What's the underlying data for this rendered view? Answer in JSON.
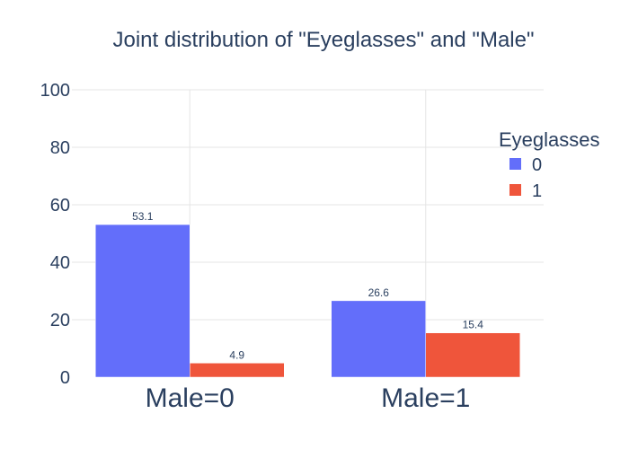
{
  "chart_data": {
    "type": "bar",
    "title": "Joint distribution of \"Eyeglasses\" and \"Male\"",
    "xlabel": "",
    "ylabel": "",
    "categories": [
      "Male=0",
      "Male=1"
    ],
    "series": [
      {
        "name": "0",
        "values": [
          53.1,
          26.6
        ],
        "color": "#636efa"
      },
      {
        "name": "1",
        "values": [
          4.9,
          15.4
        ],
        "color": "#ef553b"
      }
    ],
    "data_labels": [
      [
        "53.1",
        "26.6"
      ],
      [
        "4.9",
        "15.4"
      ]
    ],
    "ylim": [
      0,
      100
    ],
    "yticks": [
      "0",
      "20",
      "40",
      "60",
      "80",
      "100"
    ],
    "ytick_values": [
      0,
      20,
      40,
      60,
      80,
      100
    ],
    "grid": true,
    "legend": {
      "title": "Eyeglasses",
      "placement": "right",
      "entries": [
        "0",
        "1"
      ]
    }
  },
  "colors": {
    "text": "#2a3f5f",
    "grid": "#e5e5e5",
    "background": "#ffffff"
  }
}
